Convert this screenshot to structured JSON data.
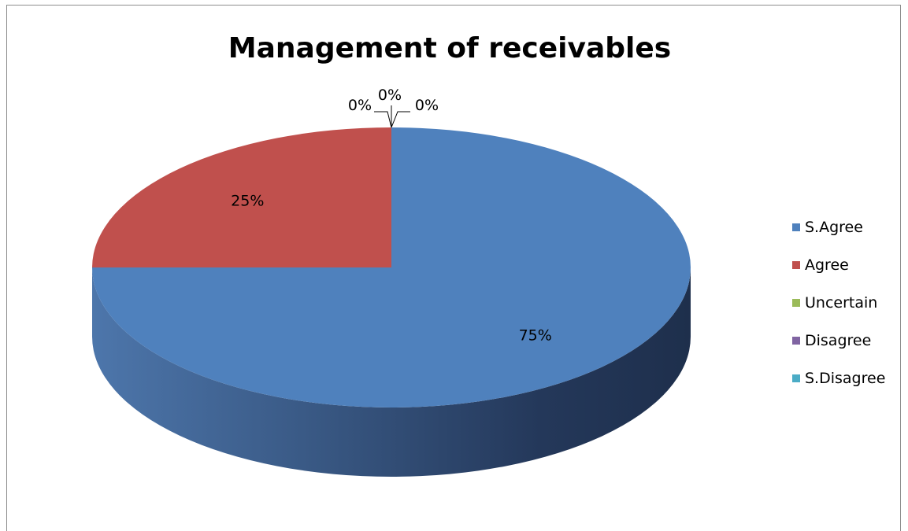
{
  "chart_data": {
    "type": "pie",
    "title": "Management of receivables",
    "categories": [
      "S.Agree",
      "Agree",
      "Uncertain",
      "Disagree",
      "S.Disagree"
    ],
    "values": [
      75,
      25,
      0,
      0,
      0
    ],
    "data_labels": [
      "75%",
      "25%",
      "0%",
      "0%",
      "0%"
    ],
    "colors": [
      "#4f81bd",
      "#c0504d",
      "#9bbb59",
      "#8064a2",
      "#4bacc6"
    ],
    "three_d": true,
    "legend_position": "right"
  }
}
